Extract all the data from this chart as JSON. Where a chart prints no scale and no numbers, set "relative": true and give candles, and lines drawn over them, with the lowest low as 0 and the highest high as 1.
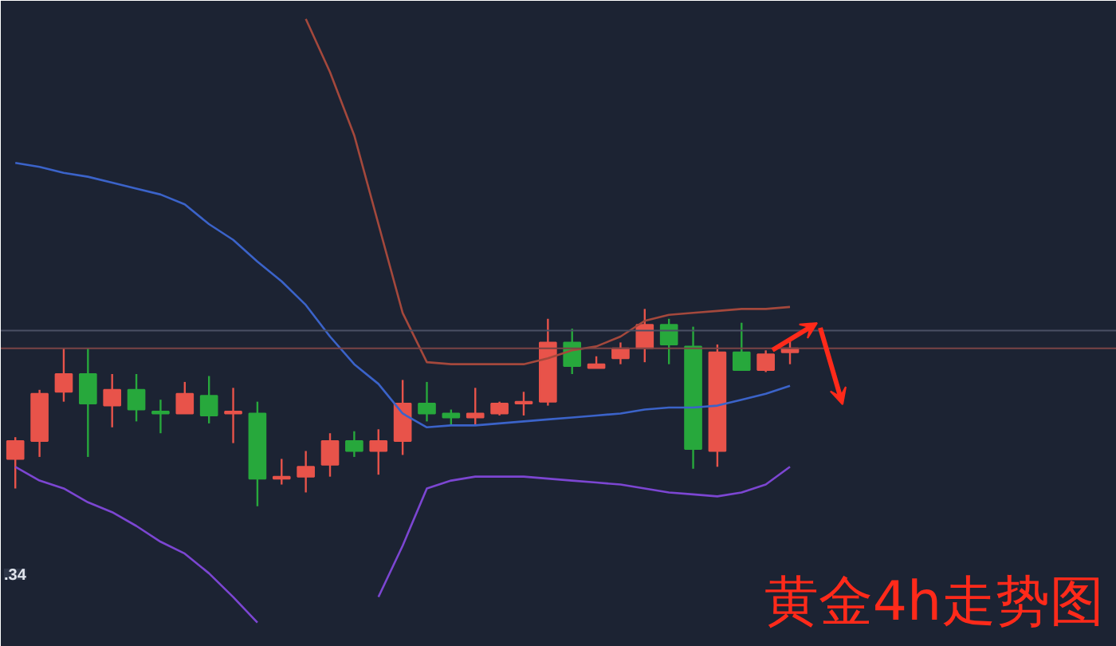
{
  "chart_data": {
    "type": "candlestick",
    "title": "黄金4h走势图",
    "relative": true,
    "categories": [
      null,
      null,
      null,
      null,
      null,
      null,
      null,
      null,
      null,
      null,
      null,
      null,
      null,
      null,
      null,
      null,
      null,
      null,
      null,
      null,
      null,
      null,
      null,
      null,
      null,
      null,
      null,
      null,
      null,
      null,
      null,
      null,
      null
    ],
    "ohlc": [
      [
        0.24,
        0.35,
        0.09,
        0.33
      ],
      [
        0.33,
        0.59,
        0.25,
        0.57
      ],
      [
        0.58,
        0.8,
        0.53,
        0.67
      ],
      [
        0.67,
        0.8,
        0.25,
        0.52
      ],
      [
        0.51,
        0.67,
        0.4,
        0.59
      ],
      [
        0.59,
        0.67,
        0.43,
        0.49
      ],
      [
        0.48,
        0.54,
        0.37,
        0.47
      ],
      [
        0.47,
        0.63,
        0.47,
        0.57
      ],
      [
        0.56,
        0.66,
        0.42,
        0.46
      ],
      [
        0.47,
        0.6,
        0.32,
        0.48
      ],
      [
        0.47,
        0.53,
        0.0,
        0.14
      ],
      [
        0.14,
        0.24,
        0.11,
        0.15
      ],
      [
        0.15,
        0.28,
        0.07,
        0.2
      ],
      [
        0.21,
        0.37,
        0.15,
        0.33
      ],
      [
        0.33,
        0.38,
        0.25,
        0.28
      ],
      [
        0.28,
        0.39,
        0.16,
        0.33
      ],
      [
        0.33,
        0.64,
        0.26,
        0.52
      ],
      [
        0.52,
        0.63,
        0.43,
        0.47
      ],
      [
        0.47,
        0.49,
        0.41,
        0.45
      ],
      [
        0.45,
        0.6,
        0.41,
        0.47
      ],
      [
        0.47,
        0.53,
        0.46,
        0.52
      ],
      [
        0.52,
        0.58,
        0.46,
        0.53
      ],
      [
        0.53,
        0.95,
        0.51,
        0.83
      ],
      [
        0.83,
        0.9,
        0.67,
        0.71
      ],
      [
        0.7,
        0.76,
        0.7,
        0.72
      ],
      [
        0.75,
        0.83,
        0.72,
        0.8
      ],
      [
        0.8,
        1.0,
        0.73,
        0.92
      ],
      [
        0.92,
        0.95,
        0.72,
        0.82
      ],
      [
        0.81,
        0.91,
        0.19,
        0.29
      ],
      [
        0.28,
        0.82,
        0.2,
        0.78
      ],
      [
        0.78,
        0.93,
        0.69,
        0.69
      ],
      [
        0.69,
        0.79,
        0.68,
        0.77
      ],
      [
        0.78,
        0.84,
        0.72,
        0.8
      ]
    ],
    "colors": [
      "#e8534a",
      "#e8534a",
      "#e8534a",
      "#27a83c",
      "#e8534a",
      "#27a83c",
      "#27a83c",
      "#e8534a",
      "#27a83c",
      "#e8534a",
      "#27a83c",
      "#e8534a",
      "#e8534a",
      "#e8534a",
      "#27a83c",
      "#e8534a",
      "#e8534a",
      "#27a83c",
      "#27a83c",
      "#e8534a",
      "#e8534a",
      "#e8534a",
      "#e8534a",
      "#27a83c",
      "#e8534a",
      "#e8534a",
      "#e8534a",
      "#27a83c",
      "#27a83c",
      "#e8534a",
      "#27a83c",
      "#e8534a",
      "#e8534a"
    ],
    "series": [
      {
        "type": "line",
        "color": "#a4483c",
        "values": [
          null,
          null,
          null,
          null,
          null,
          null,
          null,
          null,
          null,
          null,
          null,
          null,
          2.47,
          2.2,
          1.88,
          1.43,
          0.98,
          0.73,
          0.72,
          0.72,
          0.72,
          0.72,
          0.75,
          0.79,
          0.81,
          0.86,
          0.94,
          0.97,
          0.98,
          0.99,
          1.0,
          1.0,
          1.01
        ]
      },
      {
        "type": "line",
        "color": "#3b63c9",
        "values": [
          1.74,
          1.72,
          1.69,
          1.67,
          1.64,
          1.61,
          1.58,
          1.53,
          1.43,
          1.35,
          1.24,
          1.14,
          1.02,
          0.86,
          0.72,
          0.62,
          0.47,
          0.4,
          0.41,
          0.41,
          0.42,
          0.43,
          0.44,
          0.45,
          0.46,
          0.47,
          0.49,
          0.5,
          0.5,
          0.51,
          0.54,
          0.57,
          0.61
        ]
      },
      {
        "type": "line",
        "color": "#7c46d2",
        "values": [
          0.2,
          0.13,
          0.09,
          0.02,
          -0.03,
          -0.1,
          -0.18,
          -0.24,
          -0.34,
          -0.46,
          -0.59,
          null,
          null,
          null,
          null,
          -0.46,
          -0.2,
          0.09,
          0.13,
          0.15,
          0.15,
          0.15,
          0.14,
          0.13,
          0.12,
          0.11,
          0.09,
          0.07,
          0.06,
          0.05,
          0.07,
          0.11,
          0.2
        ]
      }
    ],
    "ref_lines": [
      {
        "axis": "y",
        "value": 0.89,
        "color": "#4a5064"
      },
      {
        "axis": "y",
        "value": 0.8,
        "color": "#7a4446"
      }
    ],
    "annotations": [
      ".34"
    ]
  }
}
